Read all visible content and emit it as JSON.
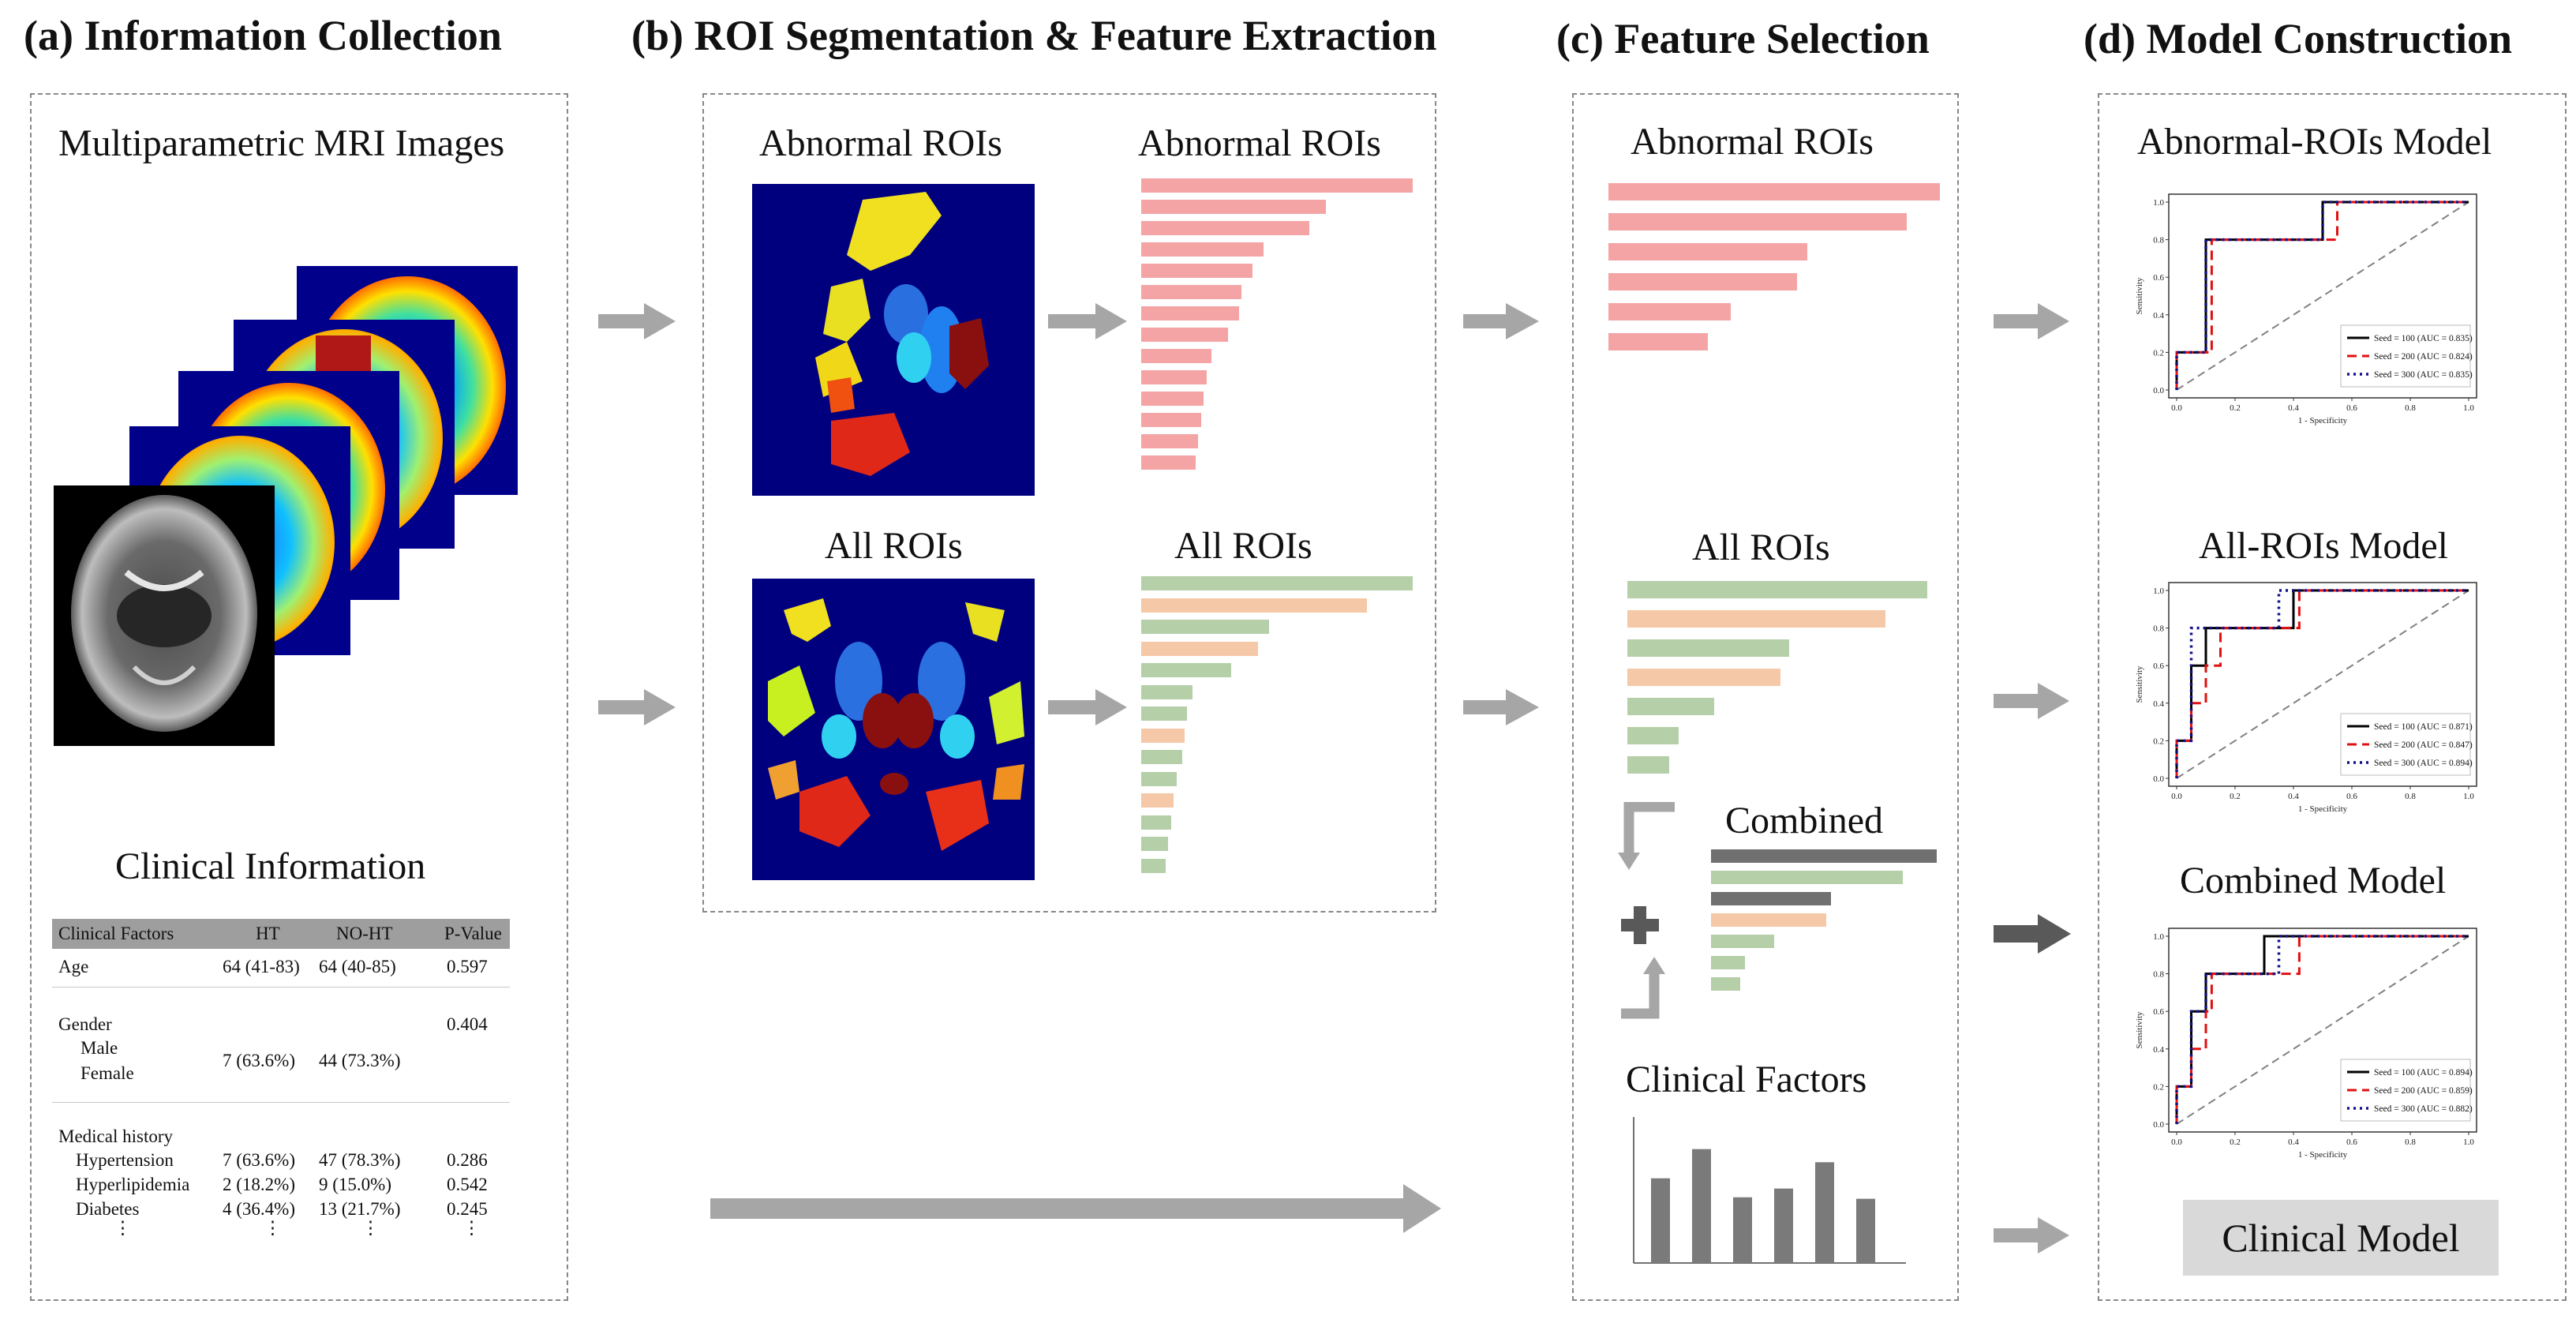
{
  "sections": {
    "a_title": "(a) Information Collection",
    "b_title": "(b) ROI Segmentation & Feature Extraction",
    "c_title": "(c) Feature Selection",
    "d_title": "(d) Model Construction"
  },
  "panel_a": {
    "mri_title": "Multiparametric MRI Images",
    "clinical_title": "Clinical Information",
    "table": {
      "headers": [
        "Clinical Factors",
        "HT",
        "NO-HT",
        "P-Value"
      ],
      "age": {
        "label": "Age",
        "ht": "64 (41-83)",
        "noht": "64 (40-85)",
        "p": "0.597"
      },
      "gender": {
        "label": "Gender",
        "p": "0.404",
        "male": "Male",
        "female": "Female",
        "ht": "7 (63.6%)",
        "noht": "44 (73.3%)"
      },
      "history": {
        "label": "Medical history",
        "rows": [
          {
            "label": "Hypertension",
            "ht": "7 (63.6%)",
            "noht": "47 (78.3%)",
            "p": "0.286"
          },
          {
            "label": "Hyperlipidemia",
            "ht": "2 (18.2%)",
            "noht": "9 (15.0%)",
            "p": "0.542"
          },
          {
            "label": "Diabetes",
            "ht": "4 (36.4%)",
            "noht": "13 (21.7%)",
            "p": "0.245"
          }
        ],
        "ellipsis": "⋮"
      }
    }
  },
  "panel_b": {
    "abnormal_img_label": "Abnormal ROIs",
    "abnormal_bar_label": "Abnormal ROIs",
    "all_img_label": "All ROIs",
    "all_bar_label": "All ROIs",
    "abnormal_bars": [
      1.0,
      0.68,
      0.62,
      0.45,
      0.41,
      0.37,
      0.36,
      0.32,
      0.26,
      0.24,
      0.23,
      0.22,
      0.21,
      0.2
    ],
    "all_bars": [
      {
        "v": 1.0,
        "kind": "green"
      },
      {
        "v": 0.83,
        "kind": "peach"
      },
      {
        "v": 0.47,
        "kind": "green"
      },
      {
        "v": 0.43,
        "kind": "peach"
      },
      {
        "v": 0.33,
        "kind": "green"
      },
      {
        "v": 0.19,
        "kind": "green"
      },
      {
        "v": 0.17,
        "kind": "green"
      },
      {
        "v": 0.16,
        "kind": "peach"
      },
      {
        "v": 0.15,
        "kind": "green"
      },
      {
        "v": 0.13,
        "kind": "green"
      },
      {
        "v": 0.12,
        "kind": "peach"
      },
      {
        "v": 0.11,
        "kind": "green"
      },
      {
        "v": 0.1,
        "kind": "green"
      },
      {
        "v": 0.09,
        "kind": "green"
      }
    ]
  },
  "panel_c": {
    "abnormal_label": "Abnormal ROIs",
    "all_label": "All ROIs",
    "combined_label": "Combined",
    "clinical_label": "Clinical Factors",
    "abnormal_bars": [
      1.0,
      0.9,
      0.6,
      0.57,
      0.37,
      0.3
    ],
    "all_bars": [
      {
        "v": 1.0,
        "kind": "green"
      },
      {
        "v": 0.86,
        "kind": "peach"
      },
      {
        "v": 0.54,
        "kind": "green"
      },
      {
        "v": 0.51,
        "kind": "peach"
      },
      {
        "v": 0.29,
        "kind": "green"
      },
      {
        "v": 0.17,
        "kind": "green"
      },
      {
        "v": 0.14,
        "kind": "green"
      }
    ],
    "combined_bars": [
      {
        "v": 1.0,
        "kind": "gray"
      },
      {
        "v": 0.85,
        "kind": "green"
      },
      {
        "v": 0.53,
        "kind": "gray"
      },
      {
        "v": 0.51,
        "kind": "peach"
      },
      {
        "v": 0.28,
        "kind": "green"
      },
      {
        "v": 0.15,
        "kind": "green"
      },
      {
        "v": 0.13,
        "kind": "green"
      }
    ],
    "clinical_bars": [
      0.58,
      0.78,
      0.45,
      0.51,
      0.69,
      0.44
    ]
  },
  "panel_d": {
    "models": [
      {
        "title": "Abnormal-ROIs Model",
        "legend": [
          "Seed = 100 (AUC = 0.835)",
          "Seed = 200 (AUC = 0.824)",
          "Seed = 300 (AUC = 0.835)"
        ],
        "curves": [
          [
            [
              0,
              0
            ],
            [
              0,
              0.2
            ],
            [
              0.1,
              0.2
            ],
            [
              0.1,
              0.8
            ],
            [
              0.5,
              0.8
            ],
            [
              0.5,
              1
            ],
            [
              1,
              1
            ]
          ],
          [
            [
              0,
              0
            ],
            [
              0,
              0.2
            ],
            [
              0.12,
              0.2
            ],
            [
              0.12,
              0.8
            ],
            [
              0.55,
              0.8
            ],
            [
              0.55,
              1
            ],
            [
              1,
              1
            ]
          ],
          [
            [
              0,
              0
            ],
            [
              0,
              0.2
            ],
            [
              0.1,
              0.2
            ],
            [
              0.1,
              0.8
            ],
            [
              0.5,
              0.8
            ],
            [
              0.5,
              1
            ],
            [
              1,
              1
            ]
          ]
        ]
      },
      {
        "title": "All-ROIs Model",
        "legend": [
          "Seed = 100 (AUC = 0.871)",
          "Seed = 200 (AUC = 0.847)",
          "Seed = 300 (AUC = 0.894)"
        ],
        "curves": [
          [
            [
              0,
              0
            ],
            [
              0,
              0.2
            ],
            [
              0.05,
              0.2
            ],
            [
              0.05,
              0.6
            ],
            [
              0.1,
              0.6
            ],
            [
              0.1,
              0.8
            ],
            [
              0.4,
              0.8
            ],
            [
              0.4,
              1
            ],
            [
              1,
              1
            ]
          ],
          [
            [
              0,
              0
            ],
            [
              0,
              0.2
            ],
            [
              0.05,
              0.2
            ],
            [
              0.05,
              0.4
            ],
            [
              0.1,
              0.4
            ],
            [
              0.1,
              0.6
            ],
            [
              0.15,
              0.6
            ],
            [
              0.15,
              0.8
            ],
            [
              0.42,
              0.8
            ],
            [
              0.42,
              1
            ],
            [
              1,
              1
            ]
          ],
          [
            [
              0,
              0
            ],
            [
              0,
              0.2
            ],
            [
              0.05,
              0.2
            ],
            [
              0.05,
              0.8
            ],
            [
              0.35,
              0.8
            ],
            [
              0.35,
              1
            ],
            [
              1,
              1
            ]
          ]
        ]
      },
      {
        "title": "Combined Model",
        "legend": [
          "Seed = 100 (AUC = 0.894)",
          "Seed = 200 (AUC = 0.859)",
          "Seed = 300 (AUC = 0.882)"
        ],
        "curves": [
          [
            [
              0,
              0
            ],
            [
              0,
              0.2
            ],
            [
              0.05,
              0.2
            ],
            [
              0.05,
              0.6
            ],
            [
              0.1,
              0.6
            ],
            [
              0.1,
              0.8
            ],
            [
              0.3,
              0.8
            ],
            [
              0.3,
              1
            ],
            [
              1,
              1
            ]
          ],
          [
            [
              0,
              0
            ],
            [
              0,
              0.2
            ],
            [
              0.05,
              0.2
            ],
            [
              0.05,
              0.4
            ],
            [
              0.1,
              0.4
            ],
            [
              0.1,
              0.6
            ],
            [
              0.12,
              0.6
            ],
            [
              0.12,
              0.8
            ],
            [
              0.42,
              0.8
            ],
            [
              0.42,
              1
            ],
            [
              1,
              1
            ]
          ],
          [
            [
              0,
              0
            ],
            [
              0,
              0.2
            ],
            [
              0.05,
              0.2
            ],
            [
              0.05,
              0.6
            ],
            [
              0.1,
              0.6
            ],
            [
              0.1,
              0.8
            ],
            [
              0.35,
              0.8
            ],
            [
              0.35,
              1
            ],
            [
              1,
              1
            ]
          ]
        ]
      }
    ],
    "xlabel": "1 - Specificity",
    "ylabel": "Sensitivity",
    "ticks": [
      "0.0",
      "0.2",
      "0.4",
      "0.6",
      "0.8",
      "1.0"
    ],
    "clinical_model": "Clinical Model"
  },
  "colors": {
    "pink": "#f4a4a4",
    "green": "#b5cfa8",
    "peach": "#f5c8a8",
    "gray_dark": "#707070",
    "arrow": "#a6a6a6",
    "arrow_dark": "#595959",
    "mri_bg": "#00007f"
  }
}
